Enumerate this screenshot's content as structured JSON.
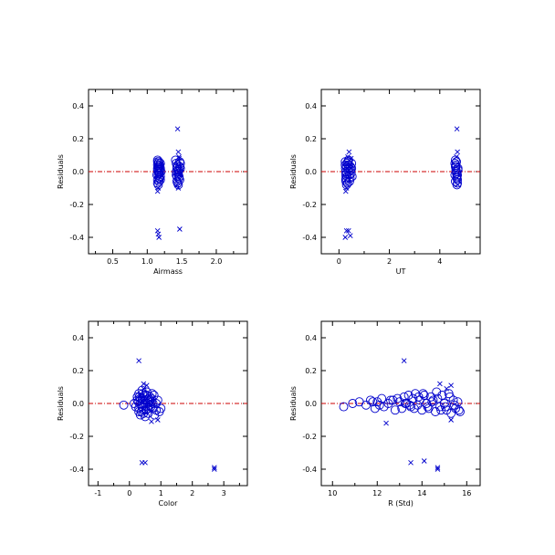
{
  "colors": {
    "marker": "#0000cc",
    "zero_line": "#cc0000",
    "axes": "#000000"
  },
  "chart_data": [
    {
      "type": "scatter",
      "xlabel": "Airmass",
      "ylabel": "Residuals",
      "xlim": [
        0.15,
        2.45
      ],
      "ylim": [
        -0.5,
        0.5
      ],
      "xticks": [
        0.5,
        1.0,
        1.5,
        2.0
      ],
      "xtick_labels": [
        "0.5",
        "1.0",
        "1.5",
        "2.0"
      ],
      "yticks": [
        -0.4,
        -0.2,
        0.0,
        0.2,
        0.4
      ],
      "ytick_labels": [
        "-0.4",
        "-0.2",
        "0.0",
        "0.2",
        "0.4"
      ],
      "zero_line": 0.0,
      "circles": {
        "x": [
          1.15,
          1.15,
          1.15,
          1.16,
          1.16,
          1.17,
          1.17,
          1.18,
          1.18,
          1.19,
          1.19,
          1.15,
          1.16,
          1.17,
          1.18,
          1.19,
          1.14,
          1.15,
          1.16,
          1.17,
          1.18,
          1.2,
          1.15,
          1.16,
          1.17,
          1.18,
          1.19,
          1.15,
          1.17,
          1.42,
          1.43,
          1.44,
          1.45,
          1.46,
          1.47,
          1.48,
          1.42,
          1.43,
          1.44,
          1.45,
          1.46,
          1.47,
          1.41,
          1.43,
          1.45,
          1.47,
          1.44,
          1.46,
          1.42,
          1.48,
          1.45,
          1.43
        ],
        "y": [
          0.06,
          0.04,
          0.02,
          0.0,
          -0.02,
          -0.04,
          -0.06,
          0.03,
          -0.01,
          0.05,
          -0.03,
          0.07,
          0.05,
          0.03,
          0.01,
          -0.05,
          -0.02,
          -0.07,
          -0.08,
          0.02,
          -0.04,
          0.0,
          0.01,
          0.03,
          -0.01,
          0.04,
          0.02,
          -0.05,
          0.06,
          0.05,
          0.03,
          0.01,
          -0.01,
          -0.03,
          -0.05,
          0.02,
          -0.02,
          -0.06,
          0.04,
          0.0,
          -0.04,
          0.06,
          0.07,
          0.02,
          -0.02,
          0.03,
          -0.07,
          0.01,
          0.0,
          0.05,
          -0.08,
          -0.03
        ]
      },
      "crosses": {
        "x": [
          1.15,
          1.16,
          1.17,
          1.15,
          1.16,
          1.44,
          1.45,
          1.46,
          1.47,
          1.43,
          1.45,
          1.46,
          1.47
        ],
        "y": [
          -0.36,
          -0.38,
          -0.4,
          -0.12,
          -0.1,
          0.26,
          0.12,
          0.09,
          -0.35,
          -0.08,
          -0.1,
          0.08,
          -0.02
        ]
      }
    },
    {
      "type": "scatter",
      "xlabel": "UT",
      "ylabel": "Residuals",
      "xlim": [
        -0.7,
        5.6
      ],
      "ylim": [
        -0.5,
        0.5
      ],
      "xticks": [
        0,
        2,
        4
      ],
      "xtick_labels": [
        "0",
        "2",
        "4"
      ],
      "yticks": [
        -0.4,
        -0.2,
        0.0,
        0.2,
        0.4
      ],
      "ytick_labels": [
        "-0.4",
        "-0.2",
        "0.0",
        "0.2",
        "0.4"
      ],
      "zero_line": 0.0,
      "circles": {
        "x": [
          0.25,
          0.25,
          0.26,
          0.27,
          0.27,
          0.28,
          0.28,
          0.3,
          0.3,
          0.32,
          0.32,
          0.35,
          0.36,
          0.38,
          0.4,
          0.42,
          0.44,
          0.46,
          0.48,
          0.5,
          0.52,
          0.3,
          0.34,
          0.38,
          0.42,
          0.46,
          0.5,
          0.27,
          0.4,
          4.6,
          4.62,
          4.64,
          4.66,
          4.68,
          4.7,
          4.72,
          4.6,
          4.62,
          4.64,
          4.66,
          4.68,
          4.7,
          4.62,
          4.66,
          4.7,
          4.64,
          4.68,
          4.72
        ],
        "y": [
          0.06,
          0.04,
          0.02,
          0.0,
          -0.02,
          -0.04,
          -0.06,
          0.03,
          -0.01,
          0.05,
          -0.03,
          0.06,
          0.04,
          0.02,
          0.0,
          -0.02,
          -0.04,
          0.03,
          -0.01,
          0.05,
          -0.03,
          -0.08,
          -0.07,
          0.07,
          -0.06,
          0.01,
          0.02,
          -0.05,
          0.04,
          0.05,
          0.03,
          0.01,
          -0.01,
          -0.03,
          -0.05,
          0.02,
          -0.02,
          -0.06,
          0.04,
          0.0,
          -0.04,
          -0.07,
          0.07,
          0.06,
          -0.02,
          0.03,
          -0.08,
          0.01
        ]
      },
      "crosses": {
        "x": [
          0.25,
          0.3,
          0.38,
          0.27,
          0.45,
          0.4,
          0.35,
          0.3,
          0.48,
          4.68,
          4.7,
          4.66,
          4.72
        ],
        "y": [
          -0.4,
          -0.36,
          -0.36,
          -0.12,
          -0.39,
          0.12,
          0.09,
          -0.1,
          0.08,
          0.26,
          0.12,
          0.09,
          -0.08
        ]
      }
    },
    {
      "type": "scatter",
      "xlabel": "Color",
      "ylabel": "Residuals",
      "xlim": [
        -1.3,
        3.75
      ],
      "ylim": [
        -0.5,
        0.5
      ],
      "xticks": [
        -1,
        0,
        1,
        2,
        3
      ],
      "xtick_labels": [
        "-1",
        "0",
        "1",
        "2",
        "3"
      ],
      "yticks": [
        -0.4,
        -0.2,
        0.0,
        0.2,
        0.4
      ],
      "ytick_labels": [
        "-0.4",
        "-0.2",
        "0.0",
        "0.2",
        "0.4"
      ],
      "zero_line": 0.0,
      "circles": {
        "x": [
          -0.18,
          0.15,
          0.2,
          0.25,
          0.28,
          0.3,
          0.32,
          0.35,
          0.38,
          0.4,
          0.42,
          0.45,
          0.48,
          0.5,
          0.52,
          0.55,
          0.58,
          0.6,
          0.62,
          0.65,
          0.68,
          0.7,
          0.72,
          0.75,
          0.78,
          0.8,
          0.85,
          0.9,
          0.95,
          1.0,
          0.3,
          0.35,
          0.4,
          0.45,
          0.5,
          0.55,
          0.6,
          0.65,
          0.7,
          0.5,
          0.4,
          0.6,
          0.35,
          0.45,
          0.55,
          0.3,
          0.25,
          0.65,
          0.75,
          0.85,
          0.42,
          0.58
        ],
        "y": [
          -0.01,
          0.0,
          -0.02,
          0.02,
          0.01,
          -0.03,
          0.04,
          0.0,
          -0.05,
          0.03,
          0.06,
          -0.01,
          0.05,
          0.02,
          -0.04,
          0.07,
          0.0,
          -0.06,
          0.03,
          0.04,
          -0.02,
          0.01,
          0.06,
          -0.03,
          0.05,
          -0.07,
          0.0,
          0.02,
          -0.05,
          -0.03,
          0.06,
          -0.07,
          0.08,
          -0.04,
          -0.08,
          0.05,
          -0.03,
          0.02,
          0.03,
          0.0,
          -0.02,
          0.01,
          0.03,
          -0.06,
          0.07,
          -0.05,
          0.04,
          -0.01,
          0.0,
          -0.04,
          0.02,
          -0.02
        ]
      },
      "crosses": {
        "x": [
          0.3,
          0.45,
          0.55,
          0.7,
          0.9,
          0.4,
          0.5,
          0.45,
          0.35,
          2.7,
          2.7
        ],
        "y": [
          0.26,
          0.12,
          0.11,
          -0.11,
          -0.1,
          -0.36,
          -0.36,
          0.09,
          0.05,
          -0.39,
          -0.4
        ]
      }
    },
    {
      "type": "scatter",
      "xlabel": "R (Std)",
      "ylabel": "Residuals",
      "xlim": [
        9.5,
        16.6
      ],
      "ylim": [
        -0.5,
        0.5
      ],
      "xticks": [
        10,
        12,
        14,
        16
      ],
      "xtick_labels": [
        "10",
        "12",
        "14",
        "16"
      ],
      "yticks": [
        -0.4,
        -0.2,
        0.0,
        0.2,
        0.4
      ],
      "ytick_labels": [
        "-0.4",
        "-0.2",
        "0.0",
        "0.2",
        "0.4"
      ],
      "zero_line": 0.0,
      "circles": {
        "x": [
          10.5,
          10.9,
          11.2,
          11.5,
          11.7,
          11.9,
          12.0,
          12.2,
          12.3,
          12.5,
          12.6,
          12.8,
          12.9,
          13.0,
          13.1,
          13.2,
          13.3,
          13.4,
          13.5,
          13.6,
          13.7,
          13.8,
          13.9,
          14.0,
          14.1,
          14.2,
          14.3,
          14.4,
          14.5,
          14.6,
          14.7,
          14.8,
          14.9,
          15.0,
          15.1,
          15.2,
          15.3,
          15.4,
          15.5,
          15.6,
          15.7,
          13.45,
          13.65,
          13.85,
          14.05,
          14.25,
          14.45,
          14.65,
          14.85,
          15.05,
          15.25,
          15.45,
          15.65,
          12.1,
          11.8,
          12.7,
          13.25
        ],
        "y": [
          -0.02,
          0.0,
          0.01,
          -0.01,
          0.02,
          -0.03,
          0.01,
          0.03,
          -0.02,
          0.0,
          0.02,
          -0.04,
          0.03,
          0.01,
          -0.03,
          0.04,
          0.0,
          0.05,
          -0.02,
          0.03,
          0.06,
          -0.01,
          0.02,
          -0.04,
          0.05,
          0.0,
          -0.03,
          0.04,
          0.02,
          -0.05,
          0.03,
          -0.02,
          0.05,
          0.0,
          -0.04,
          0.06,
          -0.06,
          0.02,
          -0.03,
          0.01,
          -0.05,
          -0.01,
          -0.03,
          0.04,
          0.06,
          -0.02,
          0.01,
          0.07,
          -0.04,
          -0.02,
          0.04,
          -0.01,
          -0.04,
          -0.01,
          0.01,
          0.02,
          0.0
        ]
      },
      "crosses": {
        "x": [
          13.2,
          14.7,
          14.7,
          15.3,
          15.3,
          12.4,
          13.5,
          14.1,
          14.8,
          15.1
        ],
        "y": [
          0.26,
          -0.39,
          -0.4,
          0.11,
          -0.1,
          -0.12,
          -0.36,
          -0.35,
          0.12,
          0.09
        ]
      }
    }
  ]
}
